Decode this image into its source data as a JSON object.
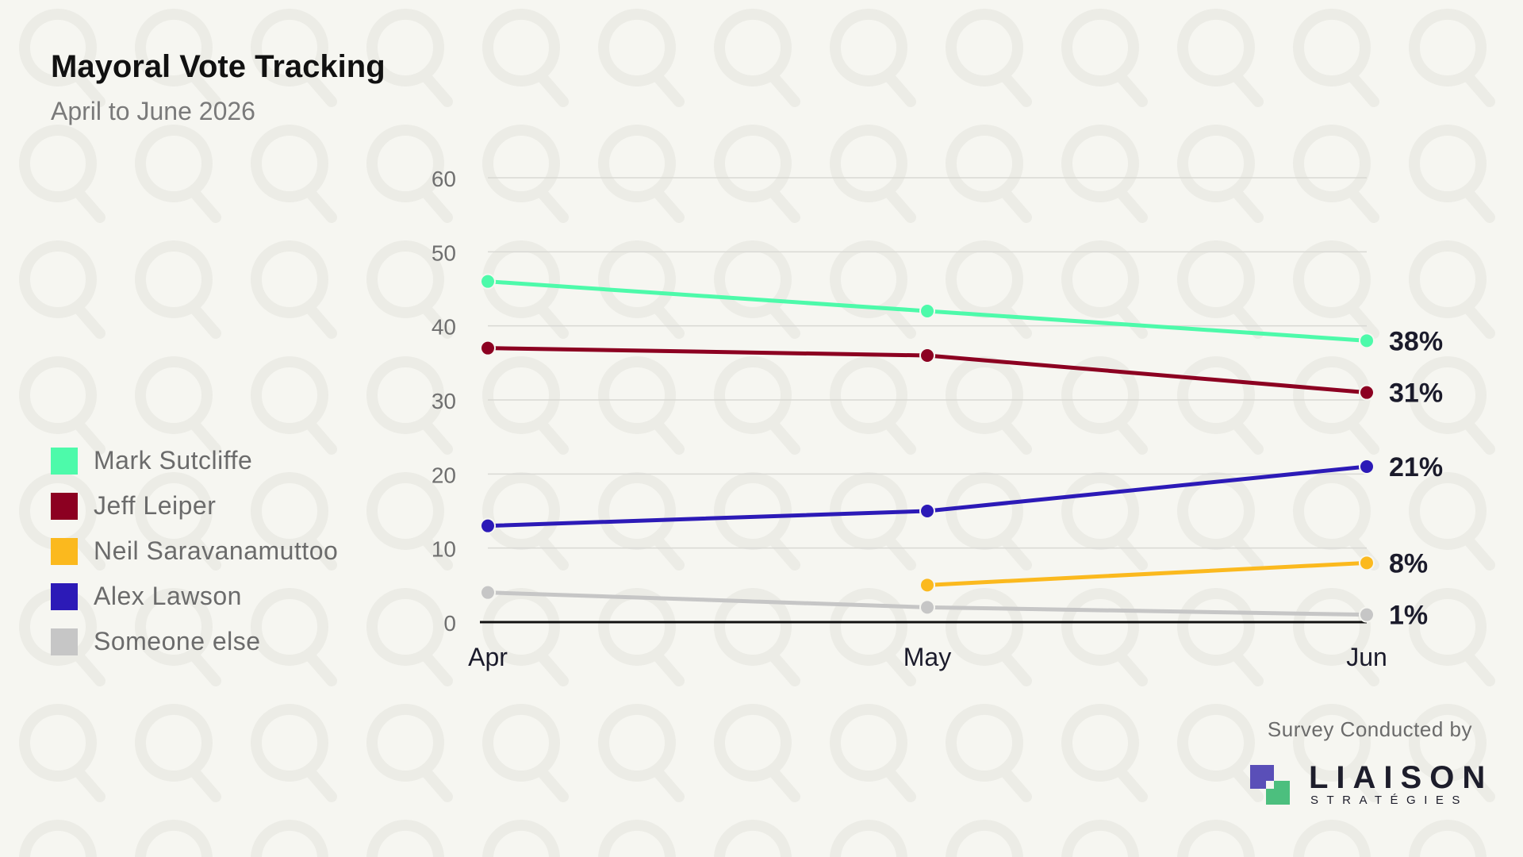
{
  "chart_data": {
    "type": "line",
    "title": "Mayoral Vote Tracking",
    "subtitle": "April to June 2026",
    "xlabel": "",
    "ylabel": "",
    "categories": [
      "Apr",
      "May",
      "Jun"
    ],
    "ylim": [
      0,
      60
    ],
    "yticks": [
      0,
      10,
      20,
      30,
      40,
      50,
      60
    ],
    "grid": true,
    "legend_position": "left",
    "series": [
      {
        "name": "Mark Sutcliffe",
        "color": "#4dfaaa",
        "values": [
          46,
          42,
          38
        ],
        "end_label": "38%"
      },
      {
        "name": "Jeff Leiper",
        "color": "#8c0021",
        "values": [
          37,
          36,
          31
        ],
        "end_label": "31%"
      },
      {
        "name": "Neil Saravanamuttoo",
        "color": "#fbb91e",
        "values": [
          null,
          5,
          8
        ],
        "end_label": "8%"
      },
      {
        "name": "Alex Lawson",
        "color": "#2c1ab7",
        "values": [
          13,
          15,
          21
        ],
        "end_label": "21%"
      },
      {
        "name": "Someone else",
        "color": "#c6c6c6",
        "values": [
          4,
          2,
          1
        ],
        "end_label": "1%"
      }
    ]
  },
  "credit": {
    "text": "Survey Conducted by",
    "logo_name": "LIAISON",
    "logo_sub": "STRATÉGIES",
    "logo_colors": [
      "#5a4fb8",
      "#4cbf7e"
    ]
  }
}
